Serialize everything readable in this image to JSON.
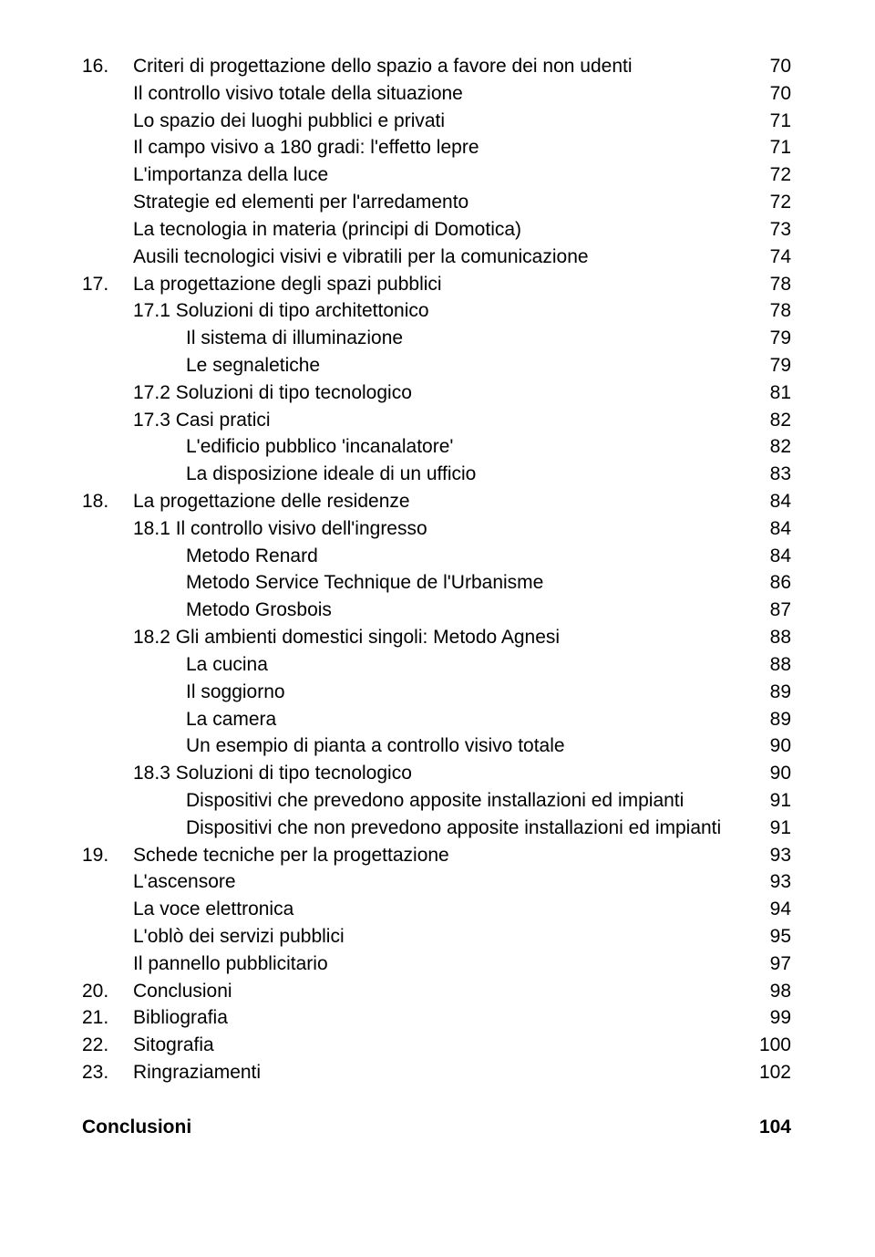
{
  "chapters": [
    {
      "num": "16.",
      "title": "Criteri di progettazione dello spazio a favore dei non udenti",
      "page": "70",
      "subs": [
        {
          "label": "Il controllo visivo totale della situazione",
          "page": "70",
          "indent": 0
        },
        {
          "label": "Lo spazio dei luoghi pubblici e privati",
          "page": "71",
          "indent": 0
        },
        {
          "label": "Il campo visivo a 180 gradi: l'effetto lepre",
          "page": "71",
          "indent": 0
        },
        {
          "label": "L'importanza della luce",
          "page": "72",
          "indent": 0
        },
        {
          "label": "Strategie ed elementi per l'arredamento",
          "page": "72",
          "indent": 0
        },
        {
          "label": "La tecnologia in materia (principi di Domotica)",
          "page": "73",
          "indent": 0
        },
        {
          "label": "Ausili tecnologici visivi e vibratili per la comunicazione",
          "page": "74",
          "indent": 0
        }
      ]
    },
    {
      "num": "17.",
      "title": "La progettazione degli spazi pubblici",
      "page": "78",
      "subs": [
        {
          "label": "17.1 Soluzioni di tipo architettonico",
          "page": "78",
          "indent": 0
        },
        {
          "label": "Il sistema di illuminazione",
          "page": "79",
          "indent": 1
        },
        {
          "label": "Le segnaletiche",
          "page": "79",
          "indent": 1
        },
        {
          "label": "17.2 Soluzioni di tipo tecnologico",
          "page": "81",
          "indent": 0
        },
        {
          "label": "17.3 Casi pratici",
          "page": "82",
          "indent": 0
        },
        {
          "label": "L'edificio pubblico 'incanalatore'",
          "page": "82",
          "indent": 1
        },
        {
          "label": "La disposizione ideale di un ufficio",
          "page": "83",
          "indent": 1
        }
      ]
    },
    {
      "num": "18.",
      "title": "La progettazione delle residenze",
      "page": "84",
      "subs": [
        {
          "label": "18.1 Il controllo visivo dell'ingresso",
          "page": "84",
          "indent": 0
        },
        {
          "label": "Metodo Renard",
          "page": "84",
          "indent": 1
        },
        {
          "label": "Metodo Service Technique de l'Urbanisme",
          "page": "86",
          "indent": 1
        },
        {
          "label": "Metodo Grosbois",
          "page": "87",
          "indent": 1
        },
        {
          "label": "18.2 Gli ambienti domestici singoli: Metodo Agnesi",
          "page": "88",
          "indent": 0
        },
        {
          "label": "La cucina",
          "page": "88",
          "indent": 1
        },
        {
          "label": "Il soggiorno",
          "page": "89",
          "indent": 1
        },
        {
          "label": "La camera",
          "page": "89",
          "indent": 1
        },
        {
          "label": "Un esempio di pianta a controllo visivo totale",
          "page": "90",
          "indent": 1
        },
        {
          "label": "18.3 Soluzioni di tipo tecnologico",
          "page": "90",
          "indent": 0
        },
        {
          "label": "Dispositivi che prevedono apposite installazioni ed impianti",
          "page": "91",
          "indent": 1
        },
        {
          "label": "Dispositivi che non prevedono apposite installazioni ed impianti",
          "page": "91",
          "indent": 1
        }
      ]
    },
    {
      "num": "19.",
      "title": "Schede tecniche per la progettazione",
      "page": "93",
      "subs": [
        {
          "label": "L'ascensore",
          "page": "93",
          "indent": 0
        },
        {
          "label": "La voce elettronica",
          "page": "94",
          "indent": 0
        },
        {
          "label": "L'oblò dei servizi pubblici",
          "page": "95",
          "indent": 0
        },
        {
          "label": "Il pannello pubblicitario",
          "page": "97",
          "indent": 0
        }
      ]
    },
    {
      "num": "20.",
      "title": "Conclusioni",
      "page": "98",
      "subs": []
    },
    {
      "num": "21.",
      "title": "Bibliografia",
      "page": "99",
      "subs": []
    },
    {
      "num": "22.",
      "title": "Sitografia",
      "page": "100",
      "subs": []
    },
    {
      "num": "23.",
      "title": "Ringraziamenti",
      "page": "102",
      "subs": []
    }
  ],
  "footer": {
    "label": "Conclusioni",
    "page": "104"
  }
}
